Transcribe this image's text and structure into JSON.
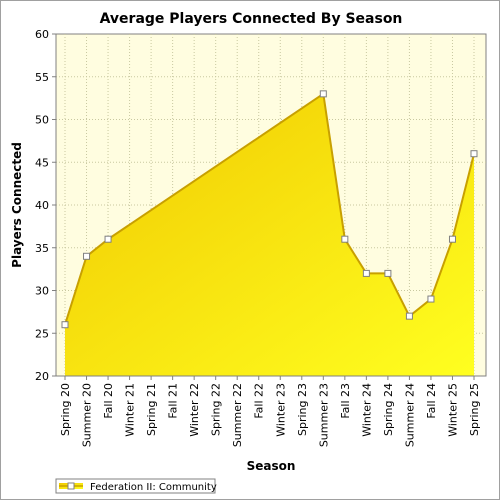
{
  "chart_data": {
    "type": "area",
    "title": "Average Players Connected By Season",
    "xlabel": "Season",
    "ylabel": "Players Connected",
    "ylim": [
      20,
      60
    ],
    "yticks": [
      20,
      25,
      30,
      35,
      40,
      45,
      50,
      55,
      60
    ],
    "categories": [
      "Spring 20",
      "Summer 20",
      "Fall 20",
      "Winter 21",
      "Spring 21",
      "Fall 21",
      "Winter 22",
      "Spring 22",
      "Summer 22",
      "Fall 22",
      "Winter 23",
      "Spring 23",
      "Summer 23",
      "Fall 23",
      "Winter 24",
      "Spring 24",
      "Summer 24",
      "Fall 24",
      "Winter 25",
      "Spring 25"
    ],
    "series": [
      {
        "name": "Federation II: Community",
        "values": [
          26,
          34,
          36,
          null,
          null,
          null,
          null,
          null,
          null,
          null,
          null,
          null,
          53,
          36,
          32,
          32,
          27,
          29,
          36,
          46
        ]
      }
    ],
    "grid": true,
    "legend": "bottom-left",
    "colors": {
      "plot_bg": "#fffde0",
      "area_top": "#f0c800",
      "area_bottom": "#ffff20",
      "line": "#c8a000",
      "grid": "#c8c8a0"
    }
  }
}
